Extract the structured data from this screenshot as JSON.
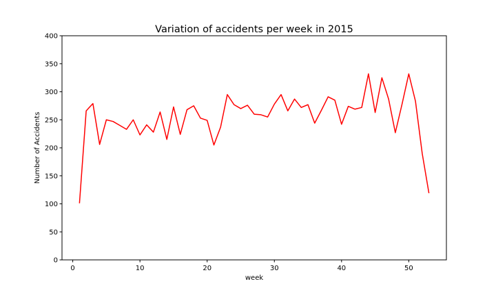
{
  "chart_data": {
    "type": "line",
    "title": "Variation of accidents per week in 2015",
    "xlabel": "week",
    "ylabel": "Number of Accidents",
    "xlim": [
      -1.6,
      55.6
    ],
    "ylim": [
      0,
      400
    ],
    "xticks": [
      0,
      10,
      20,
      30,
      40,
      50
    ],
    "yticks": [
      0,
      50,
      100,
      150,
      200,
      250,
      300,
      350,
      400
    ],
    "grid": false,
    "legend": "none",
    "series": [
      {
        "color": "#ff0000",
        "x": [
          1,
          2,
          3,
          4,
          5,
          6,
          7,
          8,
          9,
          10,
          11,
          12,
          13,
          14,
          15,
          16,
          17,
          18,
          19,
          20,
          21,
          22,
          23,
          24,
          25,
          26,
          27,
          28,
          29,
          30,
          31,
          32,
          33,
          34,
          35,
          36,
          37,
          38,
          39,
          40,
          41,
          42,
          43,
          44,
          45,
          46,
          47,
          48,
          49,
          50,
          51,
          52,
          53
        ],
        "y": [
          101,
          266,
          279,
          206,
          250,
          247,
          240,
          233,
          250,
          223,
          241,
          228,
          264,
          215,
          273,
          224,
          268,
          275,
          253,
          249,
          205,
          237,
          295,
          277,
          270,
          276,
          260,
          259,
          255,
          278,
          295,
          266,
          287,
          272,
          277,
          244,
          267,
          291,
          285,
          242,
          274,
          269,
          272,
          332,
          263,
          325,
          287,
          227,
          278,
          332,
          283,
          190,
          119
        ]
      }
    ]
  }
}
